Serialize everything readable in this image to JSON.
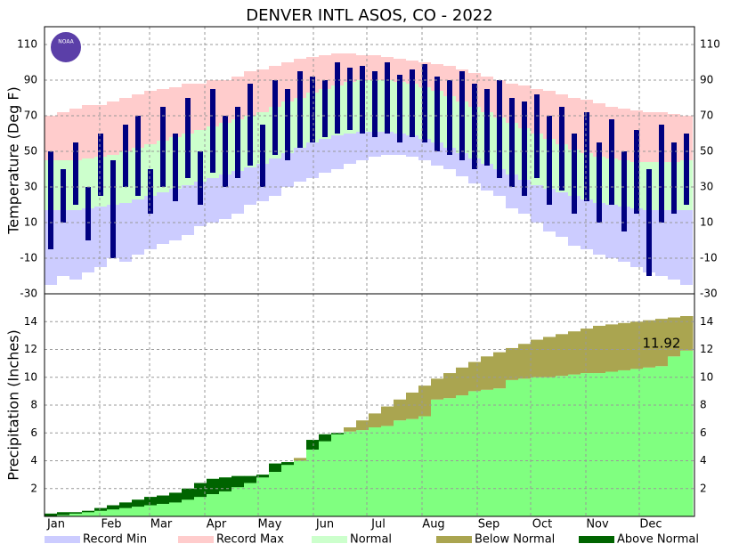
{
  "chart_data": [
    {
      "type": "range_bar",
      "title": "DENVER INTL  ASOS, CO - 2022",
      "logo_text": "NOAA",
      "ylabel": "Temperature (Deg F)",
      "ylim": [
        -30,
        120
      ],
      "yticks": [
        -30,
        -10,
        10,
        30,
        50,
        70,
        90,
        110
      ],
      "xlim": [
        1,
        366
      ],
      "grid": true,
      "xticks": [
        {
          "value": 1,
          "label": "Jan"
        },
        {
          "value": 32,
          "label": "Feb"
        },
        {
          "value": 60,
          "label": "Mar"
        },
        {
          "value": 91,
          "label": "Apr"
        },
        {
          "value": 121,
          "label": "May"
        },
        {
          "value": 152,
          "label": "Jun"
        },
        {
          "value": 182,
          "label": "Jul"
        },
        {
          "value": 213,
          "label": "Aug"
        },
        {
          "value": 244,
          "label": "Sep"
        },
        {
          "value": 274,
          "label": "Oct"
        },
        {
          "value": 305,
          "label": "Nov"
        },
        {
          "value": 335,
          "label": "Dec"
        }
      ],
      "x": [
        1,
        8,
        15,
        22,
        29,
        36,
        43,
        50,
        57,
        64,
        71,
        78,
        85,
        92,
        99,
        106,
        113,
        120,
        127,
        134,
        141,
        148,
        155,
        162,
        169,
        176,
        183,
        190,
        197,
        204,
        211,
        218,
        225,
        232,
        239,
        246,
        253,
        260,
        267,
        274,
        281,
        288,
        295,
        302,
        309,
        316,
        323,
        330,
        337,
        344,
        351,
        358
      ],
      "series": [
        {
          "name": "Record Min",
          "color": "#ccccff",
          "values": [
            -25,
            -20,
            -22,
            -18,
            -15,
            -10,
            -12,
            -8,
            -5,
            -2,
            0,
            3,
            8,
            10,
            12,
            15,
            20,
            22,
            25,
            30,
            33,
            35,
            38,
            40,
            43,
            45,
            47,
            48,
            48,
            47,
            45,
            42,
            40,
            36,
            32,
            28,
            25,
            18,
            15,
            10,
            5,
            2,
            -3,
            -5,
            -8,
            -10,
            -12,
            -15,
            -18,
            -20,
            -22,
            -25
          ]
        },
        {
          "name": "Record Max",
          "color": "#ffcccc",
          "values": [
            70,
            72,
            74,
            76,
            76,
            78,
            80,
            82,
            84,
            85,
            86,
            88,
            88,
            90,
            90,
            92,
            95,
            96,
            98,
            100,
            102,
            103,
            104,
            105,
            105,
            104,
            104,
            103,
            102,
            101,
            100,
            99,
            98,
            96,
            94,
            92,
            90,
            88,
            87,
            85,
            84,
            82,
            80,
            79,
            77,
            75,
            74,
            73,
            72,
            72,
            71,
            70
          ]
        },
        {
          "name": "Normal",
          "color": "#ccffcc",
          "low": [
            17,
            17,
            17,
            18,
            19,
            20,
            21,
            23,
            25,
            27,
            29,
            31,
            33,
            35,
            37,
            39,
            41,
            43,
            46,
            49,
            52,
            55,
            57,
            59,
            60,
            61,
            61,
            61,
            60,
            59,
            57,
            55,
            52,
            49,
            46,
            43,
            40,
            37,
            34,
            31,
            29,
            27,
            25,
            23,
            21,
            20,
            19,
            18,
            17,
            17,
            17,
            17
          ],
          "high": [
            45,
            45,
            45,
            46,
            47,
            48,
            50,
            52,
            54,
            56,
            58,
            60,
            62,
            64,
            66,
            68,
            70,
            72,
            75,
            78,
            80,
            83,
            85,
            87,
            89,
            90,
            90,
            90,
            89,
            88,
            86,
            84,
            81,
            78,
            75,
            72,
            69,
            66,
            63,
            60,
            57,
            54,
            51,
            49,
            47,
            46,
            45,
            44,
            44,
            44,
            44,
            45
          ]
        }
      ],
      "observed": {
        "color": "#000080",
        "low": [
          -5,
          10,
          20,
          0,
          25,
          -10,
          30,
          25,
          15,
          30,
          22,
          35,
          20,
          38,
          30,
          35,
          42,
          30,
          48,
          45,
          52,
          55,
          58,
          60,
          62,
          60,
          58,
          60,
          55,
          58,
          55,
          50,
          48,
          45,
          40,
          42,
          35,
          30,
          25,
          35,
          20,
          28,
          15,
          22,
          10,
          20,
          5,
          15,
          -20,
          10,
          15,
          20
        ],
        "high": [
          50,
          40,
          55,
          30,
          60,
          45,
          65,
          70,
          40,
          75,
          60,
          80,
          50,
          85,
          70,
          75,
          88,
          65,
          90,
          85,
          95,
          92,
          90,
          100,
          97,
          98,
          95,
          100,
          93,
          96,
          99,
          92,
          90,
          95,
          88,
          85,
          90,
          80,
          78,
          82,
          70,
          75,
          60,
          72,
          55,
          68,
          50,
          62,
          40,
          65,
          55,
          60
        ]
      }
    },
    {
      "type": "cumulative_area",
      "ylabel": "Precipitation (Inches)",
      "ylim": [
        0,
        16
      ],
      "yticks": [
        2,
        4,
        6,
        8,
        10,
        12,
        14
      ],
      "xlim": [
        1,
        366
      ],
      "grid": true,
      "xticks": [
        {
          "value": 1,
          "label": "Jan"
        },
        {
          "value": 32,
          "label": "Feb"
        },
        {
          "value": 60,
          "label": "Mar"
        },
        {
          "value": 91,
          "label": "Apr"
        },
        {
          "value": 121,
          "label": "May"
        },
        {
          "value": 152,
          "label": "Jun"
        },
        {
          "value": 182,
          "label": "Jul"
        },
        {
          "value": 213,
          "label": "Aug"
        },
        {
          "value": 244,
          "label": "Sep"
        },
        {
          "value": 274,
          "label": "Oct"
        },
        {
          "value": 305,
          "label": "Nov"
        },
        {
          "value": 335,
          "label": "Dec"
        }
      ],
      "x": [
        1,
        8,
        15,
        22,
        29,
        36,
        43,
        50,
        57,
        64,
        71,
        78,
        85,
        92,
        99,
        106,
        113,
        120,
        127,
        134,
        141,
        148,
        155,
        162,
        169,
        176,
        183,
        190,
        197,
        204,
        211,
        218,
        225,
        232,
        239,
        246,
        253,
        260,
        267,
        274,
        281,
        288,
        295,
        302,
        309,
        316,
        323,
        330,
        337,
        344,
        351,
        358
      ],
      "observed": {
        "color": "#80ff80",
        "values": [
          0.2,
          0.3,
          0.3,
          0.4,
          0.6,
          0.8,
          1.0,
          1.2,
          1.4,
          1.5,
          1.7,
          2.0,
          2.4,
          2.7,
          2.8,
          2.9,
          2.9,
          3.0,
          3.8,
          3.9,
          4.0,
          5.5,
          5.9,
          6.0,
          6.1,
          6.2,
          6.4,
          6.5,
          6.9,
          7.0,
          7.2,
          8.4,
          8.5,
          8.7,
          9.0,
          9.1,
          9.2,
          9.8,
          9.9,
          10.0,
          10.0,
          10.1,
          10.2,
          10.3,
          10.3,
          10.4,
          10.5,
          10.6,
          10.7,
          10.8,
          11.5,
          11.92
        ]
      },
      "normal": {
        "values": [
          0.0,
          0.1,
          0.2,
          0.3,
          0.4,
          0.5,
          0.6,
          0.7,
          0.8,
          0.9,
          1.0,
          1.2,
          1.4,
          1.6,
          1.8,
          2.1,
          2.4,
          2.8,
          3.2,
          3.7,
          4.2,
          4.8,
          5.4,
          5.9,
          6.4,
          6.9,
          7.4,
          7.9,
          8.4,
          8.9,
          9.4,
          9.9,
          10.3,
          10.7,
          11.1,
          11.5,
          11.8,
          12.1,
          12.4,
          12.7,
          12.9,
          13.1,
          13.3,
          13.5,
          13.7,
          13.8,
          13.9,
          14.0,
          14.1,
          14.2,
          14.3,
          14.4
        ]
      },
      "legend": [
        {
          "name": "Below Normal",
          "color": "#aaa550"
        },
        {
          "name": "Above Normal",
          "color": "#006400"
        }
      ]
    }
  ]
}
